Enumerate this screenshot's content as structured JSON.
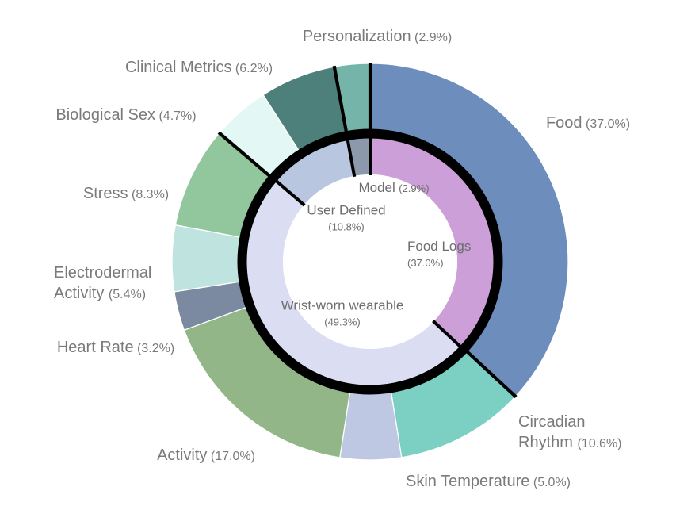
{
  "chart_data": {
    "type": "pie",
    "variant": "nested-donut",
    "title": "",
    "start_angle": "top",
    "direction": "clockwise",
    "legend": "none",
    "background_color": "#ffffff",
    "outer_label_color": "#7a7a7a",
    "inner_label_color": "#6e6e6e",
    "divider_color": "#000000",
    "ring_border_color": "#000000",
    "center_hole_color": "#ffffff",
    "outer_ring": {
      "name": "data-types",
      "segments": [
        {
          "label": "Food",
          "pct_label": "(37.0%)",
          "value": 37.0,
          "color": "#6d8ebd"
        },
        {
          "label": "Circadian Rhythm",
          "pct_label": "(10.6%)",
          "value": 10.6,
          "color": "#7ccfc3"
        },
        {
          "label": "Skin Temperature",
          "pct_label": "(5.0%)",
          "value": 5.0,
          "color": "#bfc8e2"
        },
        {
          "label": "Activity",
          "pct_label": "(17.0%)",
          "value": 17.0,
          "color": "#92b687"
        },
        {
          "label": "Heart Rate",
          "pct_label": "(3.2%)",
          "value": 3.2,
          "color": "#7b89a1"
        },
        {
          "label": "Electrodermal Activity",
          "pct_label": "(5.4%)",
          "value": 5.4,
          "color": "#bfe3df"
        },
        {
          "label": "Stress",
          "pct_label": "(8.3%)",
          "value": 8.3,
          "color": "#92c69c"
        },
        {
          "label": "Biological Sex",
          "pct_label": "(4.7%)",
          "value": 4.7,
          "color": "#e3f7f5"
        },
        {
          "label": "Clinical Metrics",
          "pct_label": "(6.2%)",
          "value": 6.2,
          "color": "#4d807b"
        },
        {
          "label": "Personalization",
          "pct_label": "(2.9%)",
          "value": 2.9,
          "color": "#74b4a9"
        }
      ]
    },
    "inner_ring": {
      "name": "data-sources",
      "segments": [
        {
          "label": "Food Logs",
          "pct_label": "(37.0%)",
          "value": 37.0,
          "color": "#cd9fd9"
        },
        {
          "label": "Wrist-worn wearable",
          "pct_label": "(49.3%)",
          "value": 49.3,
          "color": "#dbddf2"
        },
        {
          "label": "User Defined",
          "pct_label": "(10.8%)",
          "value": 10.8,
          "color": "#b9c6df"
        },
        {
          "label": "Model",
          "pct_label": "(2.9%)",
          "value": 2.9,
          "color": "#8c99ac"
        }
      ]
    },
    "group_mapping_note": "black divider lines group outer segments by inner segment",
    "outer_group_boundary_after_indexes": [
      0,
      6,
      8,
      9
    ]
  }
}
